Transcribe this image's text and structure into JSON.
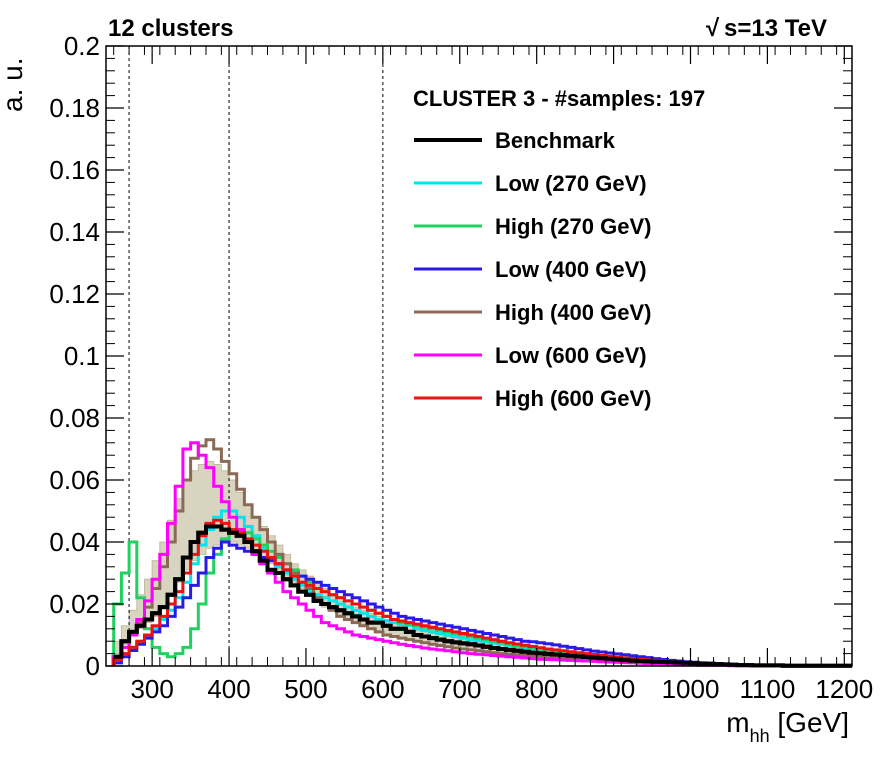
{
  "chart_data": {
    "type": "line",
    "title_left": "12 clusters",
    "sqrt_symbol": "√",
    "title_right": "s=13 TeV",
    "xlabel_main": "m",
    "xlabel_sub": "hh",
    "xlabel_unit": " [GeV]",
    "ylabel": "a. u.",
    "xlim": [
      240,
      1210
    ],
    "ylim": [
      0,
      0.2
    ],
    "x_ticks": [
      300,
      400,
      500,
      600,
      700,
      800,
      900,
      1000,
      1100,
      1200
    ],
    "x_tick_labels": [
      "300",
      "400",
      "500",
      "600",
      "700",
      "800",
      "900",
      "1000",
      "1100",
      "1200"
    ],
    "y_ticks": [
      0,
      0.02,
      0.04,
      0.06,
      0.08,
      0.1,
      0.12,
      0.14,
      0.16,
      0.18,
      0.2
    ],
    "y_tick_labels": [
      "0",
      "0.02",
      "0.04",
      "0.06",
      "0.08",
      "0.1",
      "0.12",
      "0.14",
      "0.16",
      "0.18",
      "0.2"
    ],
    "vertical_guides": [
      270,
      400,
      600
    ],
    "legend_header": "CLUSTER 3 - #samples: 197",
    "bin_width": 10,
    "bin_start": 250,
    "band": {
      "color": "#b8b08c",
      "lower": [
        0.004,
        0.007,
        0.01,
        0.012,
        0.014,
        0.016,
        0.019,
        0.023,
        0.027,
        0.031,
        0.034,
        0.036,
        0.038,
        0.039,
        0.04,
        0.04,
        0.039,
        0.038,
        0.037,
        0.035,
        0.033,
        0.031,
        0.029,
        0.027,
        0.025,
        0.023,
        0.021,
        0.019,
        0.018,
        0.016,
        0.015,
        0.014,
        0.013,
        0.012,
        0.011,
        0.01,
        0.0095,
        0.009,
        0.0085,
        0.008,
        0.0075,
        0.007,
        0.0066,
        0.0062,
        0.0058,
        0.0055,
        0.0052,
        0.0049,
        0.0046,
        0.0044,
        0.0042,
        0.004,
        0.0038,
        0.0036,
        0.0034,
        0.0032,
        0.003,
        0.0028,
        0.0027,
        0.0026,
        0.0025,
        0.0024,
        0.0023,
        0.0022,
        0.0021,
        0.002,
        0.0019,
        0.0018,
        0.0017,
        0.0016,
        0.0015,
        0.0014,
        0.0013,
        0.0012,
        0.0011,
        0.001,
        0.0009,
        0.0008,
        0.0007,
        0.0006,
        0.0005,
        0.0004,
        0.0003,
        0.0002,
        0.0002,
        0.0001,
        0.0001,
        0.0001,
        0.0001,
        0.0001,
        0.0001,
        0.0001,
        0.0001,
        0.0001,
        0.0001,
        0.0001
      ],
      "upper": [
        0.008,
        0.013,
        0.018,
        0.023,
        0.028,
        0.034,
        0.04,
        0.047,
        0.054,
        0.06,
        0.063,
        0.065,
        0.066,
        0.065,
        0.063,
        0.06,
        0.056,
        0.052,
        0.048,
        0.045,
        0.042,
        0.039,
        0.036,
        0.033,
        0.031,
        0.029,
        0.027,
        0.025,
        0.023,
        0.021,
        0.02,
        0.019,
        0.018,
        0.017,
        0.016,
        0.015,
        0.014,
        0.013,
        0.012,
        0.0115,
        0.011,
        0.0105,
        0.01,
        0.0095,
        0.009,
        0.0085,
        0.008,
        0.0077,
        0.0074,
        0.0071,
        0.0068,
        0.0065,
        0.0062,
        0.0059,
        0.0056,
        0.0053,
        0.005,
        0.0047,
        0.0045,
        0.0043,
        0.0041,
        0.0039,
        0.0037,
        0.0035,
        0.0033,
        0.0031,
        0.0029,
        0.0027,
        0.0025,
        0.0023,
        0.0021,
        0.0019,
        0.0017,
        0.0015,
        0.0013,
        0.0011,
        0.001,
        0.0009,
        0.0008,
        0.0007,
        0.0006,
        0.0005,
        0.0004,
        0.0003,
        0.0003,
        0.0002,
        0.0002,
        0.0002,
        0.0002,
        0.0002,
        0.0002,
        0.0002,
        0.0002,
        0.0002,
        0.0002,
        0.0002
      ]
    },
    "series": [
      {
        "name": "Benchmark",
        "color": "#000000",
        "width": 4,
        "values": [
          0.003,
          0.008,
          0.011,
          0.013,
          0.015,
          0.017,
          0.019,
          0.023,
          0.028,
          0.035,
          0.04,
          0.043,
          0.045,
          0.045,
          0.044,
          0.043,
          0.042,
          0.04,
          0.037,
          0.034,
          0.031,
          0.03,
          0.028,
          0.026,
          0.024,
          0.023,
          0.021,
          0.02,
          0.019,
          0.018,
          0.017,
          0.016,
          0.015,
          0.014,
          0.014,
          0.013,
          0.012,
          0.012,
          0.011,
          0.01,
          0.0095,
          0.009,
          0.0085,
          0.008,
          0.0076,
          0.0073,
          0.007,
          0.0066,
          0.0062,
          0.0058,
          0.0055,
          0.0052,
          0.0049,
          0.0046,
          0.0043,
          0.0041,
          0.0039,
          0.0037,
          0.0035,
          0.0033,
          0.0031,
          0.0029,
          0.0027,
          0.0025,
          0.0023,
          0.0021,
          0.0019,
          0.0017,
          0.0016,
          0.0015,
          0.0014,
          0.0013,
          0.0012,
          0.0011,
          0.001,
          0.0009,
          0.0008,
          0.0007,
          0.0006,
          0.0005,
          0.0004,
          0.0003,
          0.0003,
          0.0002,
          0.0002,
          0.0002,
          0.0002,
          0.0001,
          0.0001,
          0.0001,
          0.0001,
          0.0001,
          0.0001,
          0.0001,
          0.0001,
          0.0001
        ]
      },
      {
        "name": "Low (270 GeV)",
        "color": "#00e5ee",
        "width": 3,
        "values": [
          0.002,
          0.004,
          0.006,
          0.008,
          0.01,
          0.012,
          0.015,
          0.018,
          0.022,
          0.027,
          0.033,
          0.039,
          0.044,
          0.048,
          0.05,
          0.05,
          0.048,
          0.045,
          0.042,
          0.038,
          0.035,
          0.032,
          0.03,
          0.028,
          0.026,
          0.024,
          0.023,
          0.022,
          0.021,
          0.02,
          0.019,
          0.018,
          0.017,
          0.016,
          0.015,
          0.0145,
          0.014,
          0.0135,
          0.013,
          0.012,
          0.0115,
          0.011,
          0.0105,
          0.01,
          0.0095,
          0.009,
          0.0085,
          0.0082,
          0.0078,
          0.0074,
          0.007,
          0.0066,
          0.0062,
          0.0058,
          0.0055,
          0.0052,
          0.0049,
          0.0046,
          0.0043,
          0.004,
          0.0037,
          0.0034,
          0.0031,
          0.0028,
          0.0026,
          0.0024,
          0.0022,
          0.002,
          0.0018,
          0.0016,
          0.0014,
          0.0012,
          0.0011,
          0.001,
          0.0009,
          0.0008,
          0.0007,
          0.0006,
          0.0005,
          0.0004,
          0.0003,
          0.0003,
          0.0002,
          0.0002,
          0.0002,
          0.0002,
          0.0001,
          0.0001,
          0.0001,
          0.0001,
          0.0001,
          0.0001,
          0.0001,
          0.0001,
          0.0001,
          0.0001
        ]
      },
      {
        "name": "High (270 GeV)",
        "color": "#20d060",
        "width": 3,
        "values": [
          0.02,
          0.03,
          0.04,
          0.022,
          0.012,
          0.006,
          0.004,
          0.003,
          0.004,
          0.006,
          0.012,
          0.02,
          0.03,
          0.036,
          0.041,
          0.043,
          0.044,
          0.043,
          0.041,
          0.039,
          0.037,
          0.035,
          0.033,
          0.031,
          0.029,
          0.027,
          0.025,
          0.024,
          0.023,
          0.022,
          0.021,
          0.02,
          0.019,
          0.018,
          0.017,
          0.016,
          0.015,
          0.014,
          0.0135,
          0.013,
          0.0125,
          0.012,
          0.0115,
          0.011,
          0.0105,
          0.01,
          0.0095,
          0.009,
          0.0085,
          0.008,
          0.0075,
          0.007,
          0.0066,
          0.0062,
          0.0058,
          0.0055,
          0.0052,
          0.0049,
          0.0046,
          0.0043,
          0.004,
          0.0037,
          0.0034,
          0.0031,
          0.0028,
          0.0026,
          0.0024,
          0.0022,
          0.002,
          0.0018,
          0.0016,
          0.0014,
          0.0012,
          0.0011,
          0.001,
          0.0009,
          0.0008,
          0.0007,
          0.0006,
          0.0005,
          0.0004,
          0.0003,
          0.0003,
          0.0002,
          0.0002,
          0.0002,
          0.0002,
          0.0001,
          0.0001,
          0.0001,
          0.0001,
          0.0001,
          0.0001,
          0.0001,
          0.0001,
          0.0001
        ]
      },
      {
        "name": "Low (400 GeV)",
        "color": "#2a1ae8",
        "width": 3,
        "values": [
          0.001,
          0.003,
          0.005,
          0.007,
          0.009,
          0.011,
          0.013,
          0.016,
          0.019,
          0.022,
          0.026,
          0.03,
          0.035,
          0.038,
          0.04,
          0.039,
          0.038,
          0.037,
          0.036,
          0.035,
          0.034,
          0.033,
          0.031,
          0.03,
          0.029,
          0.028,
          0.027,
          0.026,
          0.025,
          0.024,
          0.023,
          0.022,
          0.021,
          0.02,
          0.019,
          0.018,
          0.017,
          0.016,
          0.0155,
          0.015,
          0.0145,
          0.014,
          0.0135,
          0.013,
          0.0125,
          0.012,
          0.0115,
          0.011,
          0.0105,
          0.01,
          0.0095,
          0.009,
          0.0085,
          0.008,
          0.0078,
          0.0075,
          0.0072,
          0.0068,
          0.0064,
          0.006,
          0.0056,
          0.0052,
          0.0048,
          0.0045,
          0.0042,
          0.0039,
          0.0036,
          0.0033,
          0.003,
          0.0027,
          0.0024,
          0.0021,
          0.0018,
          0.0016,
          0.0014,
          0.0012,
          0.001,
          0.0009,
          0.0008,
          0.0007,
          0.0006,
          0.0005,
          0.0004,
          0.0003,
          0.0003,
          0.0002,
          0.0002,
          0.0002,
          0.0001,
          0.0001,
          0.0001,
          0.0001,
          0.0001,
          0.0001,
          0.0001,
          0.0001
        ]
      },
      {
        "name": "High (400 GeV)",
        "color": "#8b6a55",
        "width": 3,
        "values": [
          0.003,
          0.006,
          0.01,
          0.014,
          0.019,
          0.025,
          0.032,
          0.04,
          0.05,
          0.06,
          0.067,
          0.071,
          0.073,
          0.07,
          0.066,
          0.062,
          0.057,
          0.052,
          0.048,
          0.044,
          0.04,
          0.036,
          0.033,
          0.03,
          0.027,
          0.025,
          0.022,
          0.02,
          0.018,
          0.016,
          0.015,
          0.014,
          0.013,
          0.012,
          0.011,
          0.01,
          0.0095,
          0.009,
          0.0085,
          0.008,
          0.0075,
          0.007,
          0.0066,
          0.0062,
          0.0058,
          0.0055,
          0.0052,
          0.0049,
          0.0046,
          0.0043,
          0.004,
          0.0038,
          0.0036,
          0.0034,
          0.0032,
          0.003,
          0.0028,
          0.0026,
          0.0024,
          0.0022,
          0.0021,
          0.002,
          0.0019,
          0.0018,
          0.0017,
          0.0016,
          0.0015,
          0.0014,
          0.0013,
          0.0012,
          0.0011,
          0.001,
          0.0009,
          0.0008,
          0.0007,
          0.0006,
          0.0005,
          0.0004,
          0.0003,
          0.0003,
          0.0002,
          0.0002,
          0.0002,
          0.0002,
          0.0001,
          0.0001,
          0.0001,
          0.0001,
          0.0001,
          0.0001,
          0.0001,
          0.0001,
          0.0001,
          0.0001,
          0.0001,
          0.0001
        ]
      },
      {
        "name": "Low (600 GeV)",
        "color": "#ff00ff",
        "width": 3,
        "values": [
          0.003,
          0.006,
          0.01,
          0.015,
          0.021,
          0.028,
          0.036,
          0.046,
          0.058,
          0.07,
          0.072,
          0.068,
          0.064,
          0.058,
          0.053,
          0.048,
          0.044,
          0.04,
          0.036,
          0.033,
          0.03,
          0.027,
          0.024,
          0.022,
          0.02,
          0.018,
          0.016,
          0.014,
          0.013,
          0.012,
          0.011,
          0.01,
          0.0095,
          0.009,
          0.0085,
          0.008,
          0.0075,
          0.007,
          0.0066,
          0.0062,
          0.0058,
          0.0055,
          0.0052,
          0.0049,
          0.0046,
          0.0043,
          0.004,
          0.0038,
          0.0036,
          0.0034,
          0.0032,
          0.003,
          0.0028,
          0.0026,
          0.0024,
          0.0022,
          0.0021,
          0.002,
          0.0019,
          0.0018,
          0.0017,
          0.0016,
          0.0015,
          0.0014,
          0.0013,
          0.0012,
          0.0011,
          0.001,
          0.0009,
          0.0008,
          0.0007,
          0.0006,
          0.0005,
          0.0004,
          0.0003,
          0.0003,
          0.0002,
          0.0002,
          0.0002,
          0.0002,
          0.0001,
          0.0001,
          0.0001,
          0.0001,
          0.0001,
          0.0001,
          0.0001,
          0.0001,
          0.0001,
          0.0001,
          0.0001,
          0.0001,
          0.0001,
          0.0001,
          0.0001,
          0.0001
        ]
      },
      {
        "name": "High (600 GeV)",
        "color": "#ee1111",
        "width": 3,
        "values": [
          0.002,
          0.004,
          0.006,
          0.008,
          0.01,
          0.013,
          0.016,
          0.02,
          0.024,
          0.03,
          0.036,
          0.042,
          0.046,
          0.047,
          0.046,
          0.044,
          0.043,
          0.041,
          0.039,
          0.037,
          0.035,
          0.033,
          0.031,
          0.029,
          0.027,
          0.026,
          0.025,
          0.024,
          0.023,
          0.022,
          0.021,
          0.02,
          0.019,
          0.018,
          0.017,
          0.016,
          0.015,
          0.0145,
          0.014,
          0.0135,
          0.013,
          0.0125,
          0.012,
          0.0115,
          0.011,
          0.0105,
          0.01,
          0.0095,
          0.009,
          0.0085,
          0.008,
          0.0075,
          0.0071,
          0.0067,
          0.0063,
          0.0059,
          0.0055,
          0.0052,
          0.0049,
          0.0046,
          0.0043,
          0.004,
          0.0037,
          0.0034,
          0.0031,
          0.0028,
          0.0026,
          0.0024,
          0.0022,
          0.002,
          0.0018,
          0.0016,
          0.0014,
          0.0012,
          0.0011,
          0.001,
          0.0009,
          0.0008,
          0.0007,
          0.0006,
          0.0005,
          0.0004,
          0.0003,
          0.0003,
          0.0002,
          0.0002,
          0.0002,
          0.0002,
          0.0001,
          0.0001,
          0.0001,
          0.0001,
          0.0001,
          0.0001,
          0.0001,
          0.0001
        ]
      }
    ]
  }
}
